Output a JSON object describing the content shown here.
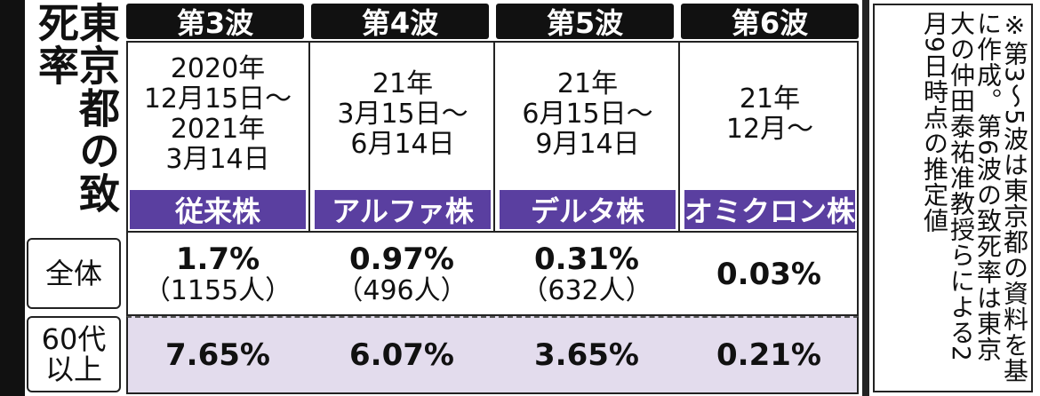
{
  "title": "東京都の致死率",
  "columns": [
    {
      "wave": "第3波",
      "period": "2020年\n12月15日〜\n2021年\n3月14日",
      "variant": "従来株"
    },
    {
      "wave": "第4波",
      "period": "21年\n3月15日〜\n6月14日",
      "variant": "アルファ株"
    },
    {
      "wave": "第5波",
      "period": "21年\n6月15日〜\n9月14日",
      "variant": "デルタ株"
    },
    {
      "wave": "第6波",
      "period": "21年\n12月〜",
      "variant": "オミクロン株"
    }
  ],
  "row_labels": {
    "all": "全体",
    "over60": "60代\n以上"
  },
  "note": "※第3〜5波は東京都の資料を基に作成。第6波の致死率は東京大の仲田泰祐准教授らによる2月9日時点の推定値",
  "colors": {
    "variant_bg": "#5a3fa0",
    "row2_bg": "#e3dced",
    "header_bg": "#111111"
  },
  "chart_data": {
    "type": "table",
    "title": "東京都の致死率",
    "categories": [
      "第3波",
      "第4波",
      "第5波",
      "第6波"
    ],
    "series": [
      {
        "name": "全体",
        "values": [
          1.7,
          0.97,
          0.31,
          0.03
        ],
        "display": [
          "1.7%",
          "0.97%",
          "0.31%",
          "0.03%"
        ],
        "counts": [
          "（1155人）",
          "（496人）",
          "（632人）",
          ""
        ]
      },
      {
        "name": "60代以上",
        "values": [
          7.65,
          6.07,
          3.65,
          0.21
        ],
        "display": [
          "7.65%",
          "6.07%",
          "3.65%",
          "0.21%"
        ]
      }
    ]
  }
}
